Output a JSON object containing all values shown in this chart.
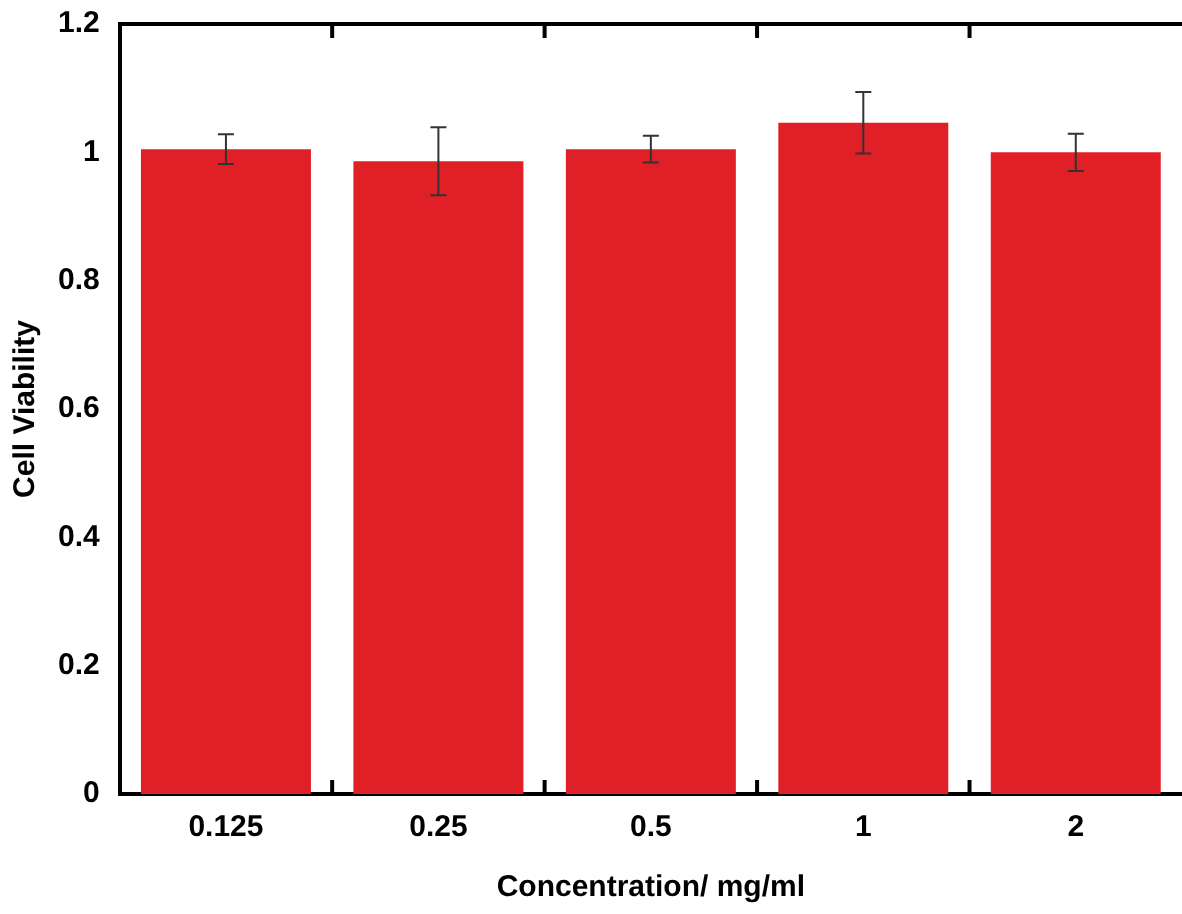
{
  "chart_data": {
    "type": "bar",
    "xlabel": "Concentration/ mg/ml",
    "ylabel": "Cell Viability",
    "categories": [
      "0.125",
      "0.25",
      "0.5",
      "1",
      "2"
    ],
    "values": [
      1.005,
      0.986,
      1.005,
      1.046,
      1.0
    ],
    "errors": [
      0.023,
      0.053,
      0.021,
      0.048,
      0.029
    ],
    "color": "#e01f27",
    "ylim": [
      0,
      1.2
    ],
    "yticks": [
      0,
      0.2,
      0.4,
      0.6,
      0.8,
      1,
      1.2
    ],
    "grid": false,
    "legend": false
  }
}
